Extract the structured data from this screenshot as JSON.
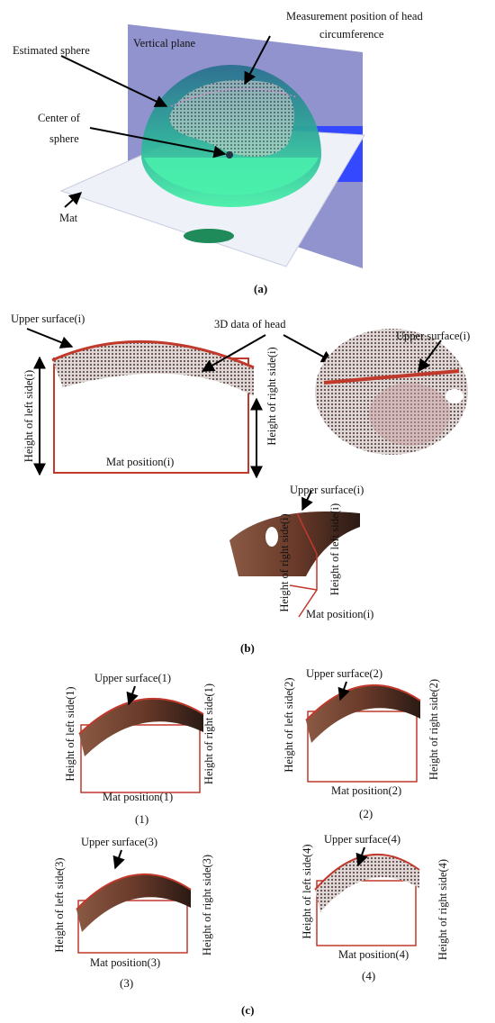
{
  "panel_a": {
    "vertical_plane": "Vertical plane",
    "estimated_sphere": "Estimated sphere",
    "measurement_position": [
      "Measurement position of head",
      "circumference"
    ],
    "center_of_sphere": [
      "Center of",
      "sphere"
    ],
    "mat": "Mat",
    "caption": "(a)"
  },
  "panel_b": {
    "upper_surface_left": "Upper surface(i)",
    "data_3d": "3D data of head",
    "upper_surface_right": "Upper surface(i)",
    "height_left": "Height of left side(i)",
    "height_right": "Height of right side(i)",
    "mat_position": "Mat position(i)",
    "upper_surface_bottom": "Upper surface(i)",
    "height_right_bottom": "Height of right side(i)",
    "height_left_bottom": "Height of left side(i)",
    "mat_position_bottom": "Mat position(i)",
    "caption": "(b)"
  },
  "panel_c": {
    "views": [
      {
        "upper_surface": "Upper surface(1)",
        "height_left": "Height of left side(1)",
        "height_right": "Height of right side(1)",
        "mat_position": "Mat position(1)",
        "caption": "(1)"
      },
      {
        "upper_surface": "Upper surface(2)",
        "height_left": "Height of left side(2)",
        "height_right": "Height of right side(2)",
        "mat_position": "Mat position(2)",
        "caption": "(2)"
      },
      {
        "upper_surface": "Upper surface(3)",
        "height_left": "Height of left side(3)",
        "height_right": "Height of right side(3)",
        "mat_position": "Mat position(3)",
        "caption": "(3)"
      },
      {
        "upper_surface": "Upper surface(4)",
        "height_left": "Height of left side(4)",
        "height_right": "Height of right side(4)",
        "mat_position": "Mat position(4)",
        "caption": "(4)"
      }
    ],
    "caption": "(c)"
  }
}
